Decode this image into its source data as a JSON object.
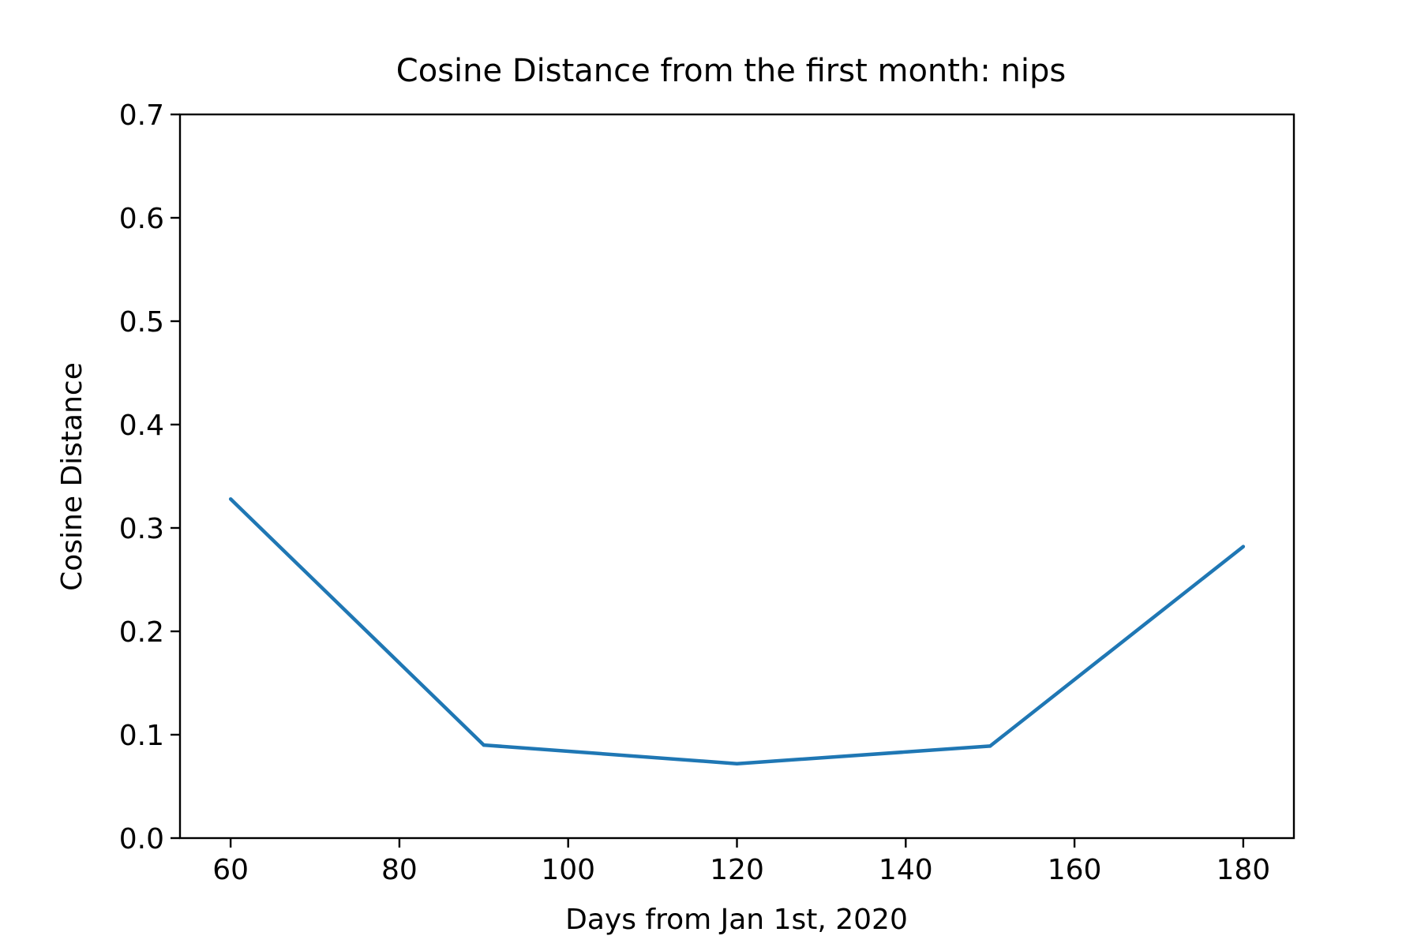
{
  "chart_data": {
    "type": "line",
    "title": "Cosine Distance from the first month: nips",
    "xlabel": "Days from Jan 1st, 2020",
    "ylabel": "Cosine Distance",
    "xlim": [
      54,
      186
    ],
    "ylim": [
      0,
      0.7
    ],
    "x_ticks": [
      60,
      80,
      100,
      120,
      140,
      160,
      180
    ],
    "x_tick_labels": [
      "60",
      "80",
      "100",
      "120",
      "140",
      "160",
      "180"
    ],
    "y_ticks": [
      0.0,
      0.1,
      0.2,
      0.3,
      0.4,
      0.5,
      0.6,
      0.7
    ],
    "y_tick_labels": [
      "0.0",
      "0.1",
      "0.2",
      "0.3",
      "0.4",
      "0.5",
      "0.6",
      "0.7"
    ],
    "grid": false,
    "legend": "none",
    "line_color": "#1f77b4",
    "series": [
      {
        "x": [
          60,
          90,
          120,
          150,
          180
        ],
        "values": [
          0.328,
          0.09,
          0.072,
          0.089,
          0.282
        ]
      }
    ]
  }
}
